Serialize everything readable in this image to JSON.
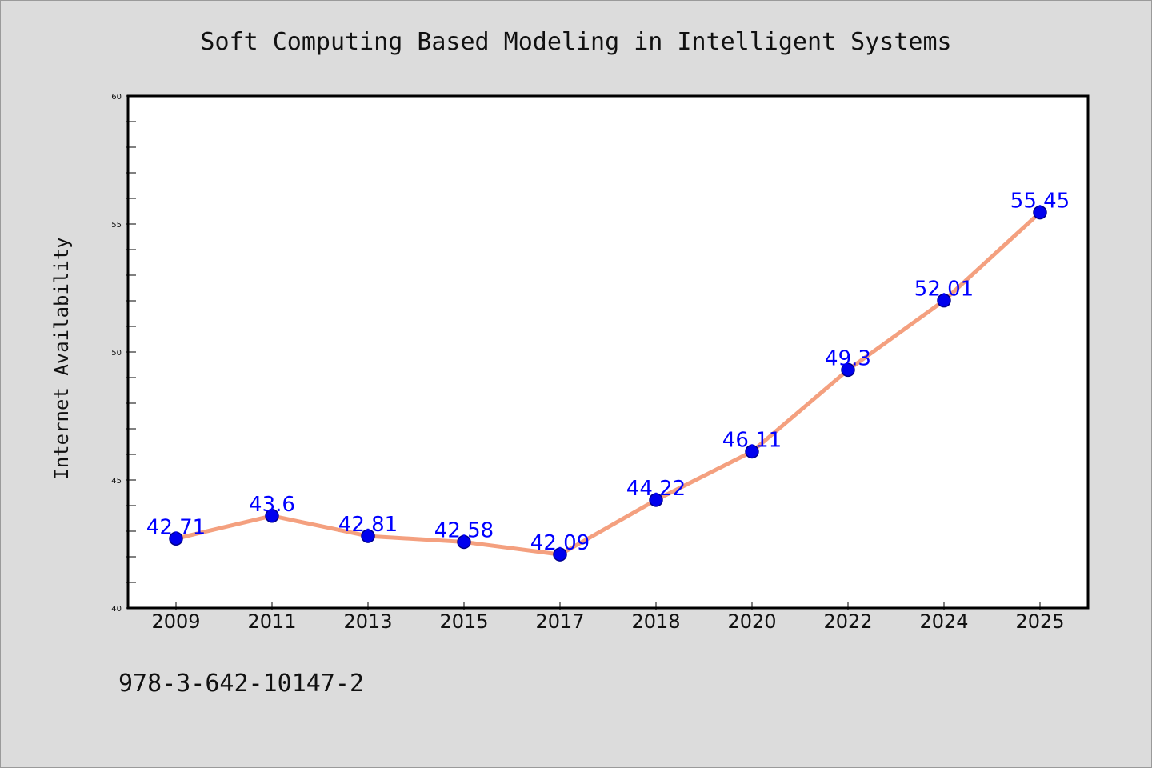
{
  "chart_data": {
    "type": "line",
    "title": "Soft Computing Based Modeling in Intelligent Systems",
    "xlabel": "",
    "ylabel": "Internet Availability",
    "categories": [
      "2009",
      "2011",
      "2013",
      "2015",
      "2017",
      "2018",
      "2020",
      "2022",
      "2024",
      "2025"
    ],
    "series": [
      {
        "values": [
          42.71,
          43.6,
          42.81,
          42.58,
          42.09,
          44.22,
          46.11,
          49.3,
          52.01,
          55.45
        ],
        "labels": [
          "42.71",
          "43.6",
          "42.81",
          "42.58",
          "42.09",
          "44.22",
          "46.11",
          "49.3",
          "52.01",
          "55.45"
        ],
        "line_color": "#f4a07f",
        "marker_color": "#0000ee"
      }
    ],
    "ylim": [
      40,
      60
    ],
    "y_ticks": [
      "40",
      "45",
      "50",
      "55",
      "60"
    ],
    "grid": false,
    "legend": "none",
    "data_label_color": "#0000ff"
  },
  "footer": {
    "isbn": "978-3-642-10147-2"
  },
  "colors": {
    "background": "#dcdcdc",
    "plot_area": "#ffffff",
    "axis": "#000000"
  }
}
